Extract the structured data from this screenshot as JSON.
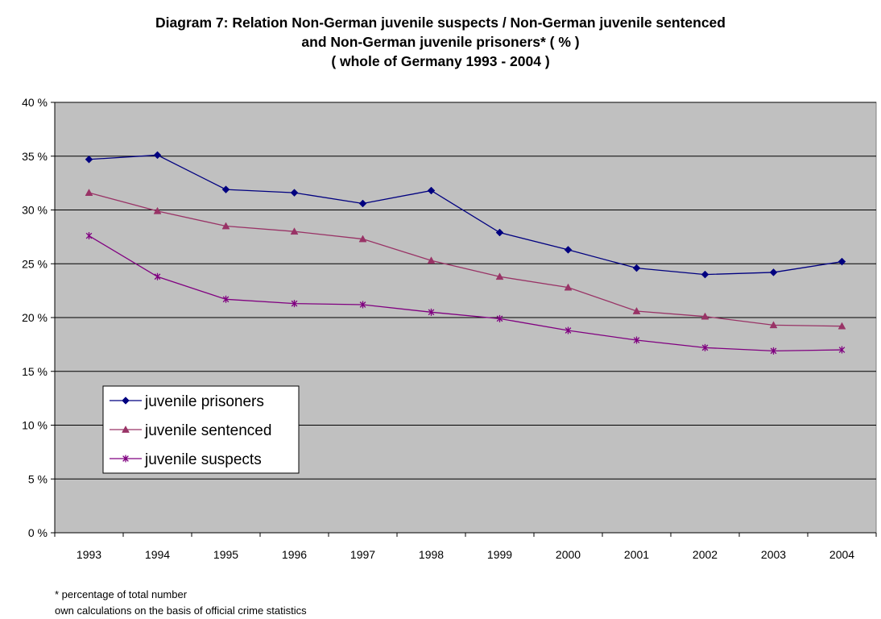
{
  "chart_data": {
    "type": "line",
    "title": "Diagram 7: Relation Non-German juvenile suspects / Non-German juvenile sentenced and Non-German juvenile prisoners* ( % ) ( whole of Germany 1993 - 2004 )",
    "title_lines": [
      "Diagram 7: Relation Non-German juvenile suspects / Non-German juvenile sentenced",
      "and Non-German juvenile prisoners* ( % )",
      "( whole of Germany 1993 - 2004 )"
    ],
    "xlabel": "",
    "ylabel": "",
    "categories": [
      "1993",
      "1994",
      "1995",
      "1996",
      "1997",
      "1998",
      "1999",
      "2000",
      "2001",
      "2002",
      "2003",
      "2004"
    ],
    "ylim": [
      0,
      40
    ],
    "yticks": [
      0,
      5,
      10,
      15,
      20,
      25,
      30,
      35,
      40
    ],
    "ytick_labels": [
      "0 %",
      "5 %",
      "10 %",
      "15 %",
      "20 %",
      "25 %",
      "30 %",
      "35 %",
      "40 %"
    ],
    "grid": true,
    "legend_position": "lower-left",
    "plot_background": "#c0c0c0",
    "series": [
      {
        "name": "juvenile prisoners",
        "color": "#000080",
        "marker": "diamond",
        "values": [
          34.7,
          35.1,
          31.9,
          31.6,
          30.6,
          31.8,
          27.9,
          26.3,
          24.6,
          24.0,
          24.2,
          25.2
        ]
      },
      {
        "name": "juvenile sentenced",
        "color": "#993366",
        "marker": "triangle",
        "values": [
          31.6,
          29.9,
          28.5,
          28.0,
          27.3,
          25.3,
          23.8,
          22.8,
          20.6,
          20.1,
          19.3,
          19.2
        ]
      },
      {
        "name": "juvenile suspects",
        "color": "#800080",
        "marker": "asterisk",
        "values": [
          27.6,
          23.8,
          21.7,
          21.3,
          21.2,
          20.5,
          19.9,
          18.8,
          17.9,
          17.2,
          16.9,
          17.0
        ]
      }
    ]
  },
  "footnotes": {
    "line1": "* percentage of total number",
    "line2": "own calculations on the basis of official crime statistics"
  }
}
